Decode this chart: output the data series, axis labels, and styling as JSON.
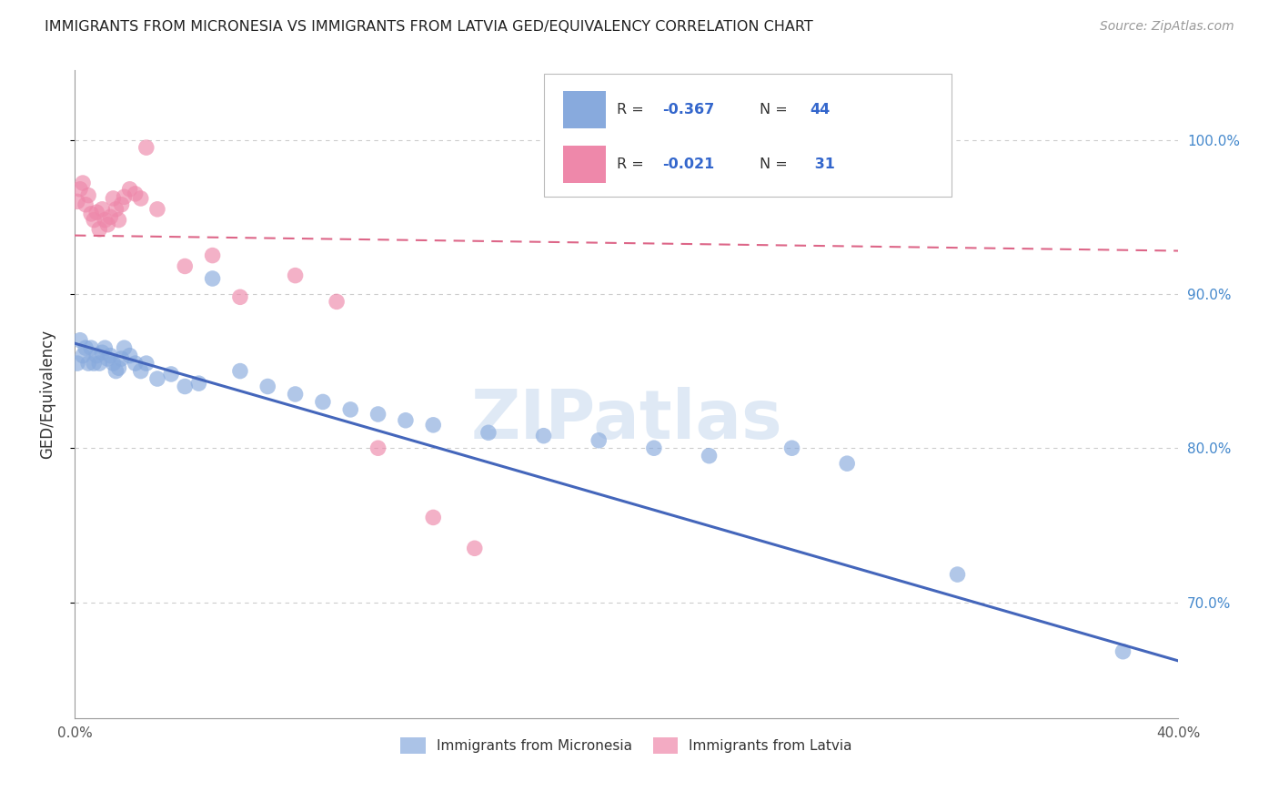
{
  "title": "IMMIGRANTS FROM MICRONESIA VS IMMIGRANTS FROM LATVIA GED/EQUIVALENCY CORRELATION CHART",
  "source": "Source: ZipAtlas.com",
  "ylabel": "GED/Equivalency",
  "xlim": [
    0.0,
    0.4
  ],
  "ylim": [
    0.625,
    1.045
  ],
  "grid_color": "#cccccc",
  "background_color": "#ffffff",
  "watermark": "ZIPatlas",
  "blue_color": "#88aadd",
  "pink_color": "#ee88aa",
  "blue_line_color": "#4466bb",
  "pink_line_color": "#dd6688",
  "micronesia_x": [
    0.001,
    0.002,
    0.003,
    0.004,
    0.005,
    0.006,
    0.007,
    0.008,
    0.009,
    0.01,
    0.011,
    0.012,
    0.013,
    0.014,
    0.015,
    0.016,
    0.017,
    0.018,
    0.02,
    0.022,
    0.024,
    0.026,
    0.03,
    0.035,
    0.04,
    0.045,
    0.05,
    0.06,
    0.07,
    0.08,
    0.09,
    0.1,
    0.11,
    0.12,
    0.13,
    0.15,
    0.17,
    0.19,
    0.21,
    0.23,
    0.26,
    0.28,
    0.32,
    0.38
  ],
  "micronesia_y": [
    0.855,
    0.87,
    0.86,
    0.865,
    0.855,
    0.865,
    0.855,
    0.86,
    0.855,
    0.862,
    0.865,
    0.858,
    0.86,
    0.855,
    0.85,
    0.852,
    0.858,
    0.865,
    0.86,
    0.855,
    0.85,
    0.855,
    0.845,
    0.848,
    0.84,
    0.842,
    0.91,
    0.85,
    0.84,
    0.835,
    0.83,
    0.825,
    0.822,
    0.818,
    0.815,
    0.81,
    0.808,
    0.805,
    0.8,
    0.795,
    0.8,
    0.79,
    0.718,
    0.668
  ],
  "latvia_x": [
    0.001,
    0.002,
    0.003,
    0.004,
    0.005,
    0.006,
    0.007,
    0.008,
    0.009,
    0.01,
    0.011,
    0.012,
    0.013,
    0.014,
    0.015,
    0.016,
    0.017,
    0.018,
    0.02,
    0.022,
    0.024,
    0.026,
    0.03,
    0.04,
    0.05,
    0.06,
    0.08,
    0.095,
    0.11,
    0.13,
    0.145
  ],
  "latvia_y": [
    0.96,
    0.968,
    0.972,
    0.958,
    0.964,
    0.952,
    0.948,
    0.953,
    0.942,
    0.955,
    0.948,
    0.945,
    0.95,
    0.962,
    0.955,
    0.948,
    0.958,
    0.963,
    0.968,
    0.965,
    0.962,
    0.995,
    0.955,
    0.918,
    0.925,
    0.898,
    0.912,
    0.895,
    0.8,
    0.755,
    0.735
  ],
  "blue_trend_x": [
    0.0,
    0.4
  ],
  "blue_trend_y": [
    0.868,
    0.662
  ],
  "pink_trend_x": [
    0.0,
    0.4
  ],
  "pink_trend_y": [
    0.938,
    0.928
  ]
}
